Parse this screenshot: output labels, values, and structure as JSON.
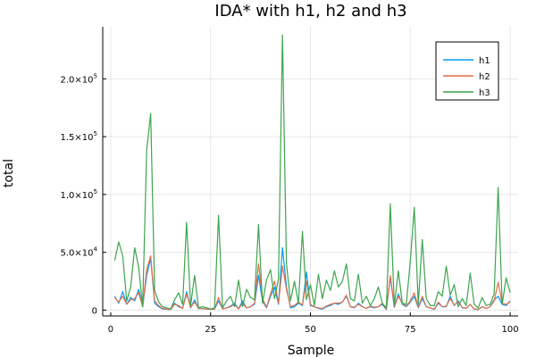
{
  "chart_data": {
    "type": "line",
    "title": "IDA* with h1, h2 and h3",
    "xlabel": "Sample",
    "ylabel": "total",
    "xlim": [
      -2,
      102
    ],
    "ylim": [
      -5000,
      245000
    ],
    "x_ticks": [
      0,
      25,
      50,
      75,
      100
    ],
    "y_ticks": [
      {
        "value": 0,
        "mantissa": "0",
        "exp": ""
      },
      {
        "value": 50000,
        "mantissa": "5.0×10",
        "exp": "4"
      },
      {
        "value": 100000,
        "mantissa": "1.0×10",
        "exp": "5"
      },
      {
        "value": 150000,
        "mantissa": "1.5×10",
        "exp": "5"
      },
      {
        "value": 200000,
        "mantissa": "2.0×10",
        "exp": "5"
      }
    ],
    "grid": true,
    "legend_position": "top-right",
    "x": [
      1,
      2,
      3,
      4,
      5,
      6,
      7,
      8,
      9,
      10,
      11,
      12,
      13,
      14,
      15,
      16,
      17,
      18,
      19,
      20,
      21,
      22,
      23,
      24,
      25,
      26,
      27,
      28,
      29,
      30,
      31,
      32,
      33,
      34,
      35,
      36,
      37,
      38,
      39,
      40,
      41,
      42,
      43,
      44,
      45,
      46,
      47,
      48,
      49,
      50,
      51,
      52,
      53,
      54,
      55,
      56,
      57,
      58,
      59,
      60,
      61,
      62,
      63,
      64,
      65,
      66,
      67,
      68,
      69,
      70,
      71,
      72,
      73,
      74,
      75,
      76,
      77,
      78,
      79,
      80,
      81,
      82,
      83,
      84,
      85,
      86,
      87,
      88,
      89,
      90,
      91,
      92,
      93,
      94,
      95,
      96,
      97,
      98,
      99,
      100
    ],
    "series": [
      {
        "name": "h1",
        "color": "#009AFA",
        "values": [
          12000,
          6000,
          16000,
          5000,
          11000,
          8000,
          18000,
          3000,
          30000,
          45000,
          6000,
          3000,
          1000,
          800,
          500,
          6000,
          3000,
          1500,
          16000,
          2000,
          9000,
          1200,
          1500,
          1000,
          800,
          900,
          8000,
          1200,
          2000,
          3500,
          6000,
          1200,
          8000,
          2000,
          3000,
          5000,
          30000,
          8000,
          2000,
          12000,
          20000,
          5000,
          54000,
          20000,
          2000,
          3000,
          6000,
          4000,
          33000,
          4000,
          3000,
          1500,
          1000,
          3000,
          4000,
          6000,
          5000,
          7000,
          12000,
          3000,
          2000,
          6000,
          3000,
          1500,
          3000,
          2000,
          3000,
          5000,
          500,
          28000,
          2500,
          14000,
          5000,
          3000,
          7000,
          12000,
          2000,
          10000,
          3000,
          2000,
          500,
          6000,
          3000,
          3000,
          12000,
          4000,
          8000,
          2000,
          1500,
          5000,
          800,
          500,
          3000,
          1500,
          3000,
          9000,
          12000,
          5000,
          4000,
          8000
        ]
      },
      {
        "name": "h2",
        "color": "#E36F47",
        "values": [
          11000,
          7000,
          12000,
          5000,
          9000,
          10000,
          15000,
          3000,
          35000,
          47000,
          8000,
          4000,
          1500,
          1000,
          500,
          5000,
          4000,
          1500,
          14000,
          2500,
          7000,
          1500,
          1200,
          1000,
          800,
          1000,
          11000,
          1000,
          2000,
          3000,
          5000,
          1000,
          6000,
          2000,
          3000,
          6000,
          40000,
          10000,
          2500,
          14000,
          25000,
          6000,
          38000,
          18000,
          3000,
          4000,
          7000,
          4500,
          25000,
          5000,
          3000,
          2000,
          1500,
          3500,
          5000,
          6000,
          6000,
          7000,
          13000,
          3000,
          2500,
          5000,
          3000,
          1500,
          3500,
          2500,
          3000,
          6000,
          800,
          30000,
          3000,
          12000,
          6000,
          3500,
          8000,
          15000,
          2500,
          12000,
          3000,
          2000,
          800,
          7000,
          3000,
          3500,
          10000,
          4500,
          7000,
          2500,
          1500,
          5000,
          1000,
          800,
          3000,
          1500,
          3000,
          8000,
          24000,
          6000,
          5000,
          7000
        ]
      },
      {
        "name": "h3",
        "color": "#3EA44E",
        "values": [
          43000,
          59000,
          47000,
          8000,
          20000,
          54000,
          37000,
          3000,
          138000,
          170000,
          17000,
          7000,
          3000,
          2000,
          1000,
          9000,
          15000,
          5000,
          76000,
          4000,
          30000,
          2000,
          3000,
          2000,
          1000,
          2000,
          82000,
          2000,
          8000,
          12000,
          3000,
          26000,
          3000,
          18000,
          11000,
          9000,
          74000,
          6000,
          26000,
          35000,
          10000,
          27000,
          238000,
          40000,
          8000,
          25000,
          6000,
          68000,
          9000,
          22000,
          4000,
          31000,
          10000,
          26000,
          17000,
          34000,
          20000,
          25000,
          40000,
          10000,
          8000,
          31000,
          6000,
          12000,
          4000,
          10000,
          20000,
          6000,
          2000,
          92000,
          4000,
          34000,
          6000,
          5000,
          42000,
          89000,
          5000,
          61000,
          10000,
          4000,
          4000,
          16000,
          12000,
          38000,
          13000,
          22000,
          3000,
          10000,
          4000,
          32000,
          5000,
          2000,
          11000,
          4000,
          5000,
          14000,
          106000,
          5000,
          28000,
          15000
        ]
      }
    ]
  }
}
